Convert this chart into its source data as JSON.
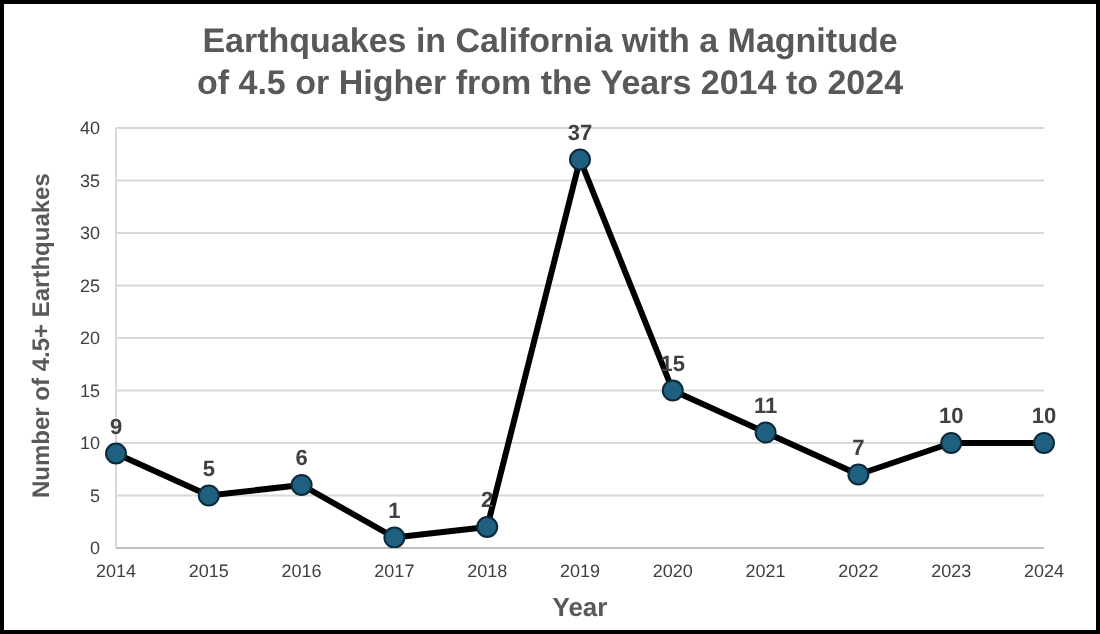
{
  "chart_data": {
    "type": "line",
    "title": "Earthquakes in California with a Magnitude of 4.5 or Higher from the Years 2014 to 2024",
    "xlabel": "Year",
    "ylabel": "Number of 4.5+ Earthquakes",
    "categories": [
      "2014",
      "2015",
      "2016",
      "2017",
      "2018",
      "2019",
      "2020",
      "2021",
      "2022",
      "2023",
      "2024"
    ],
    "series": [
      {
        "color": "#000000",
        "values": [
          9,
          5,
          6,
          1,
          2,
          37,
          15,
          11,
          7,
          10,
          10
        ]
      }
    ],
    "ylim": [
      0,
      40
    ],
    "yticks": [
      0,
      5,
      10,
      15,
      20,
      25,
      30,
      35,
      40
    ],
    "grid": "y",
    "marker": "circle",
    "data_labels": true,
    "legend": false
  }
}
